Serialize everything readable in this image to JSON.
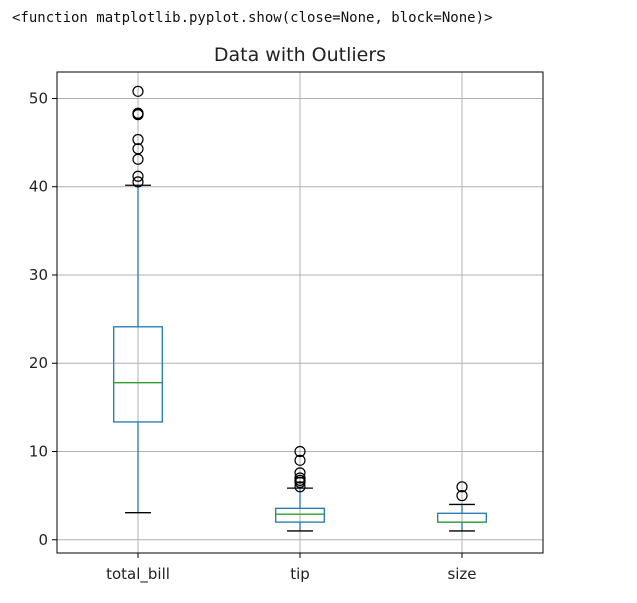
{
  "output": {
    "repr_text": "<function matplotlib.pyplot.show(close=None, block=None)>"
  },
  "chart_data": {
    "type": "boxplot",
    "title": "Data with Outliers",
    "xlabel": "",
    "ylabel": "",
    "ylim": [
      -1.5,
      53
    ],
    "yticks": [
      0,
      10,
      20,
      30,
      40,
      50
    ],
    "grid": true,
    "categories": [
      "total_bill",
      "tip",
      "size"
    ],
    "boxes": [
      {
        "name": "total_bill",
        "whisker_low": 3.07,
        "q1": 13.35,
        "median": 17.8,
        "q3": 24.13,
        "whisker_high": 40.17,
        "outliers": [
          40.55,
          41.19,
          43.11,
          44.3,
          45.35,
          48.17,
          48.27,
          48.33,
          50.81
        ]
      },
      {
        "name": "tip",
        "whisker_low": 1.0,
        "q1": 2.0,
        "median": 2.9,
        "q3": 3.56,
        "whisker_high": 5.85,
        "outliers": [
          6.0,
          6.5,
          6.73,
          7.0,
          7.58,
          9.0,
          10.0
        ]
      },
      {
        "name": "size",
        "whisker_low": 1,
        "q1": 2,
        "median": 2,
        "q3": 3,
        "whisker_high": 4,
        "outliers": [
          5,
          6
        ]
      }
    ],
    "colors": {
      "box": "#1f77b4",
      "median": "#2ca02c",
      "grid": "#b0b0b0",
      "axes": "#000000",
      "outlier": "#000000"
    }
  }
}
